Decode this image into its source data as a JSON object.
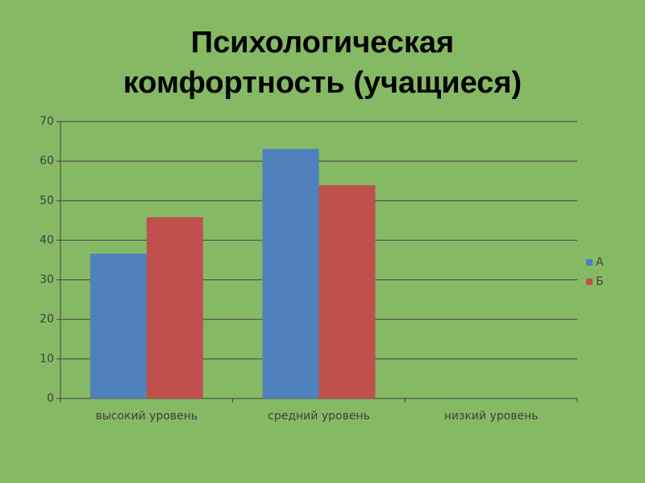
{
  "chart_data": {
    "type": "bar",
    "title": "Психологическая комфортность (учащиеся)",
    "categories": [
      "высокий уровень",
      "средний уровень",
      "низкий уровень"
    ],
    "series": [
      {
        "name": "А",
        "color": "#4f81bd",
        "values": [
          36.6,
          63.1,
          null
        ]
      },
      {
        "name": "Б",
        "color": "#c0504d",
        "values": [
          45.8,
          53.9,
          null
        ]
      }
    ],
    "ylim": [
      0,
      70
    ],
    "yticks": [
      0,
      10,
      20,
      30,
      40,
      50,
      60,
      70
    ],
    "grid": true,
    "legend": "right"
  }
}
